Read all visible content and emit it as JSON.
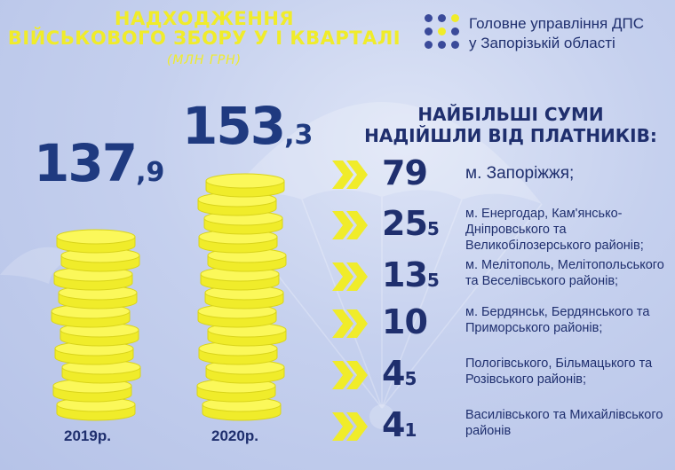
{
  "header": {
    "title_line1": "НАДХОДЖЕННЯ",
    "title_line2": "ВІЙСЬКОВОГО ЗБОРУ У І КВАРТАЛІ",
    "units": "(МЛН ГРН)"
  },
  "organization": {
    "line1": "Головне управління ДПС",
    "line2": "у Запорізькій області",
    "dot_colors": [
      "#3a4a9a",
      "#3a4a9a",
      "#f0ec2a",
      "#3a4a9a",
      "#f0ec2a",
      "#3a4a9a",
      "#3a4a9a",
      "#3a4a9a",
      "#3a4a9a"
    ]
  },
  "colors": {
    "accent_yellow": "#f0ec2a",
    "text_blue": "#1f2f6e",
    "number_blue": "#1f3a80"
  },
  "chart_data": [
    {
      "type": "bar",
      "categories": [
        "2019р.",
        "2020р."
      ],
      "values": [
        137.9,
        153.3
      ],
      "value_labels": [
        {
          "int": "137",
          "sep": ",",
          "dec": "9"
        },
        {
          "int": "153",
          "sep": ",",
          "dec": "3"
        }
      ],
      "title": "НАДХОДЖЕННЯ ВІЙСЬКОВОГО ЗБОРУ У І КВАРТАЛІ",
      "subtitle": "(МЛН ГРН)",
      "representation": "coin stacks",
      "coin_counts": [
        10,
        13
      ]
    },
    {
      "type": "table",
      "title": "НАЙБІЛЬШІ СУМИ НАДІЙШЛИ ВІД ПЛАТНИКІВ:",
      "rows": [
        {
          "int": "79",
          "dec": "",
          "value": 79,
          "label": "м. Запоріжжя;"
        },
        {
          "int": "25",
          "dec": "5",
          "value": 25.5,
          "label": "м. Енергодар, Кам'янсько-Дніпровського та Великобілозерського районів;"
        },
        {
          "int": "13",
          "dec": "5",
          "value": 13.5,
          "label": "м. Мелітополь, Мелітопольського та Веселівського районів;"
        },
        {
          "int": "10",
          "dec": "",
          "value": 10,
          "label": "м. Бердянськ, Бердянського та Приморського районів;"
        },
        {
          "int": "4",
          "dec": "5",
          "value": 4.5,
          "label": "Пологівського, Більмацького та Розівського районів;"
        },
        {
          "int": "4",
          "dec": "1",
          "value": 4.1,
          "label": "Василівського та Михайлівського районів"
        }
      ]
    }
  ]
}
